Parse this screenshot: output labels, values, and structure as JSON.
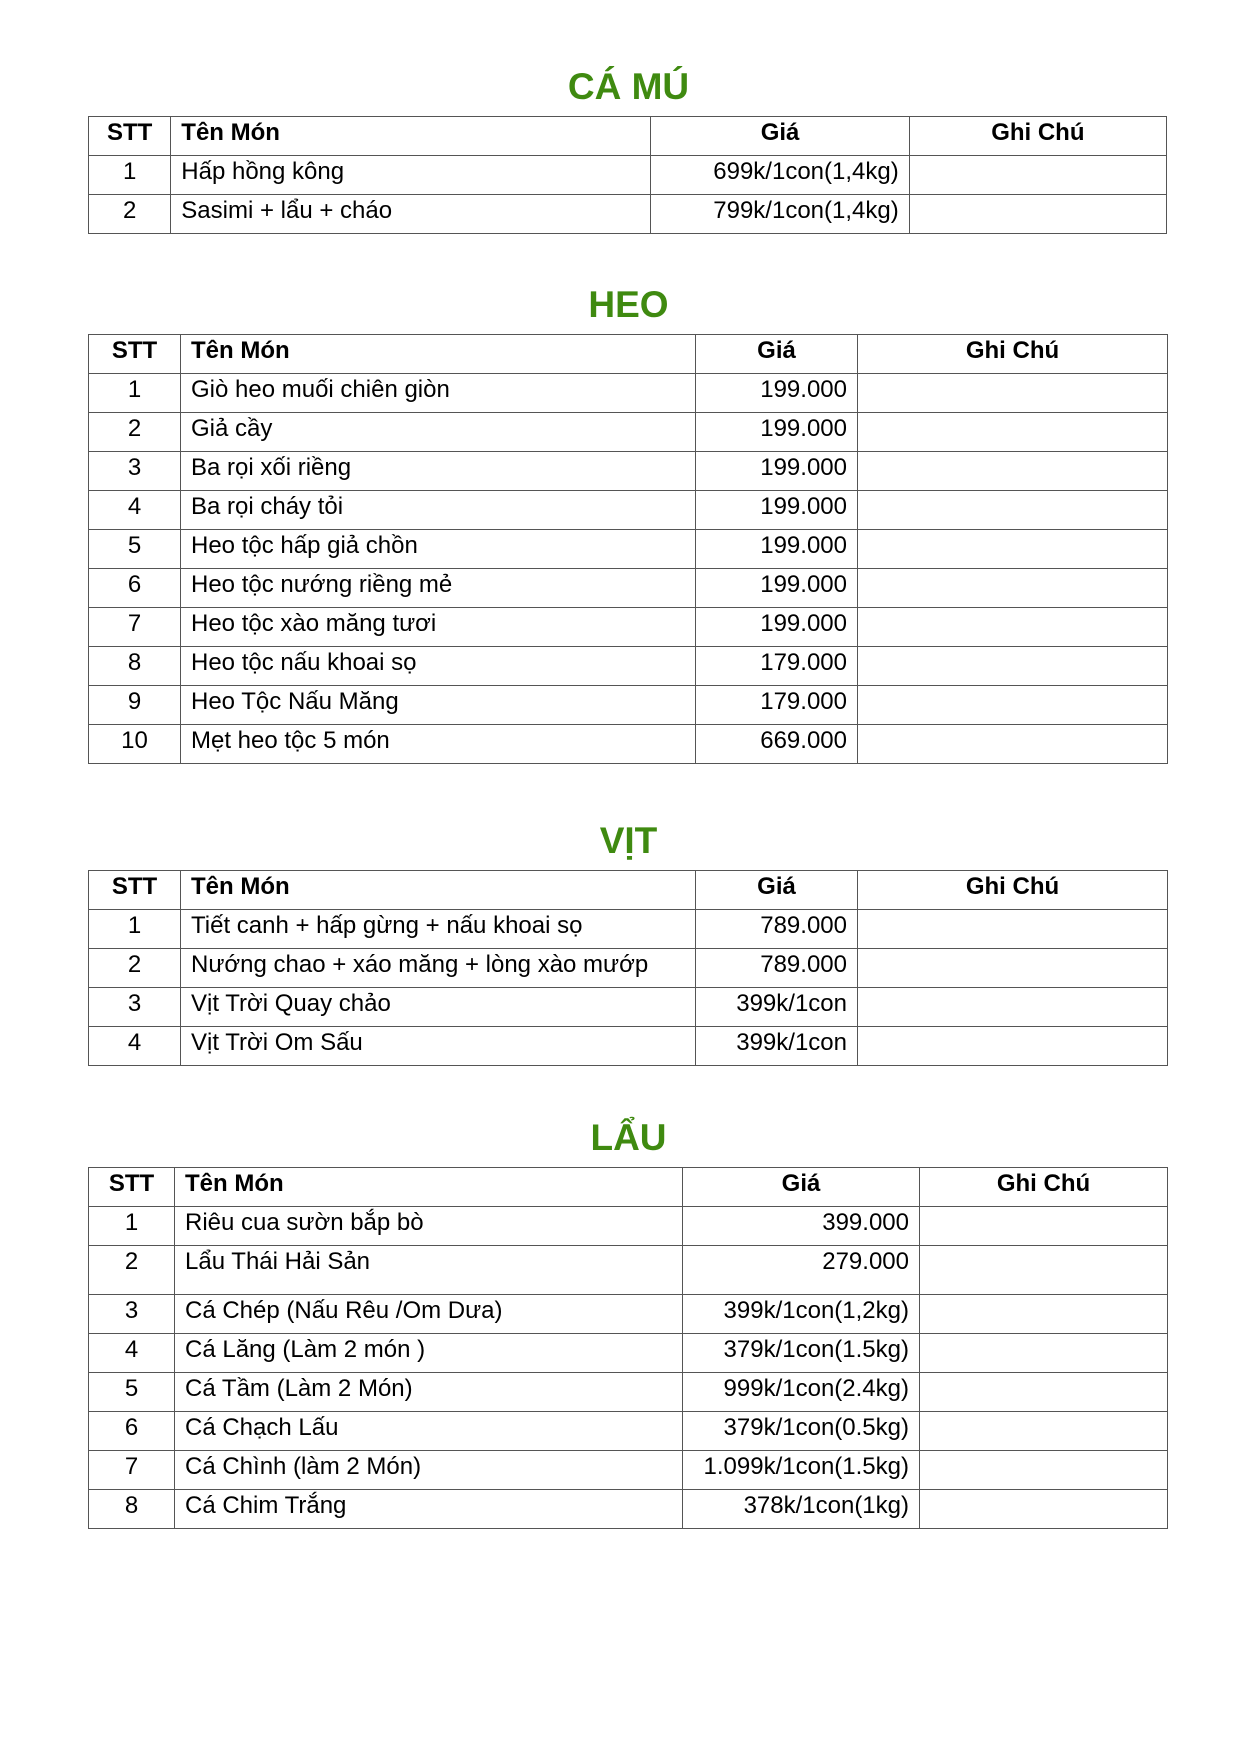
{
  "headers": {
    "stt": "STT",
    "name": "Tên Món",
    "price": "Giá",
    "note": "Ghi Chú"
  },
  "title_color": "#3f8a10",
  "sections": [
    {
      "title": "CÁ MÚ",
      "rows": [
        {
          "stt": "1",
          "name": "Hấp hồng kông",
          "price": "699k/1con(1,4kg)",
          "note": ""
        },
        {
          "stt": "2",
          "name": "Sasimi + lẩu + cháo",
          "price": "799k/1con(1,4kg)",
          "note": ""
        }
      ]
    },
    {
      "title": "HEO",
      "rows": [
        {
          "stt": "1",
          "name": "Giò heo muối chiên giòn",
          "price": "199.000",
          "note": ""
        },
        {
          "stt": "2",
          "name": "Giả cầy",
          "price": "199.000",
          "note": ""
        },
        {
          "stt": "3",
          "name": "Ba rọi xối riềng",
          "price": "199.000",
          "note": ""
        },
        {
          "stt": "4",
          "name": "Ba rọi cháy tỏi",
          "price": "199.000",
          "note": ""
        },
        {
          "stt": "5",
          "name": "Heo tộc hấp giả chồn",
          "price": "199.000",
          "note": ""
        },
        {
          "stt": "6",
          "name": "Heo tộc nướng riềng mẻ",
          "price": "199.000",
          "note": ""
        },
        {
          "stt": "7",
          "name": "Heo tộc xào măng tươi",
          "price": "199.000",
          "note": ""
        },
        {
          "stt": "8",
          "name": "Heo tộc nấu khoai sọ",
          "price": "179.000",
          "note": ""
        },
        {
          "stt": "9",
          "name": "Heo Tộc Nấu Măng",
          "price": "179.000",
          "note": ""
        },
        {
          "stt": "10",
          "name": "Mẹt heo tộc 5 món",
          "price": "669.000",
          "note": ""
        }
      ]
    },
    {
      "title": "VỊT",
      "rows": [
        {
          "stt": "1",
          "name": "Tiết canh + hấp gừng + nấu khoai sọ",
          "price": "789.000",
          "note": ""
        },
        {
          "stt": "2",
          "name": "Nướng chao + xáo măng + lòng xào mướp",
          "price": "789.000",
          "note": ""
        },
        {
          "stt": "3",
          "name": "Vịt Trời Quay chảo",
          "price": "399k/1con",
          "note": ""
        },
        {
          "stt": "4",
          "name": "Vịt Trời Om Sấu",
          "price": "399k/1con",
          "note": ""
        }
      ]
    },
    {
      "title": "LẨU",
      "rows": [
        {
          "stt": "1",
          "name": "Riêu cua sườn bắp bò",
          "price": "399.000",
          "note": ""
        },
        {
          "stt": "2",
          "name": "Lẩu Thái Hải Sản",
          "price": "279.000",
          "note": ""
        },
        {
          "stt": "3",
          "name": "Cá Chép (Nấu Rêu /Om Dưa)",
          "price": "399k/1con(1,2kg)",
          "note": ""
        },
        {
          "stt": "4",
          "name": "Cá Lăng (Làm 2 món )",
          "price": "379k/1con(1.5kg)",
          "note": ""
        },
        {
          "stt": "5",
          "name": "Cá Tầm (Làm 2 Món)",
          "price": "999k/1con(2.4kg)",
          "note": ""
        },
        {
          "stt": "6",
          "name": "Cá Chạch Lấu",
          "price": "379k/1con(0.5kg)",
          "note": ""
        },
        {
          "stt": "7",
          "name": "Cá Chình (làm 2 Món)",
          "price": "1.099k/1con(1.5kg)",
          "note": ""
        },
        {
          "stt": "8",
          "name": "Cá Chim Trắng",
          "price": "378k/1con(1kg)",
          "note": ""
        }
      ]
    }
  ]
}
